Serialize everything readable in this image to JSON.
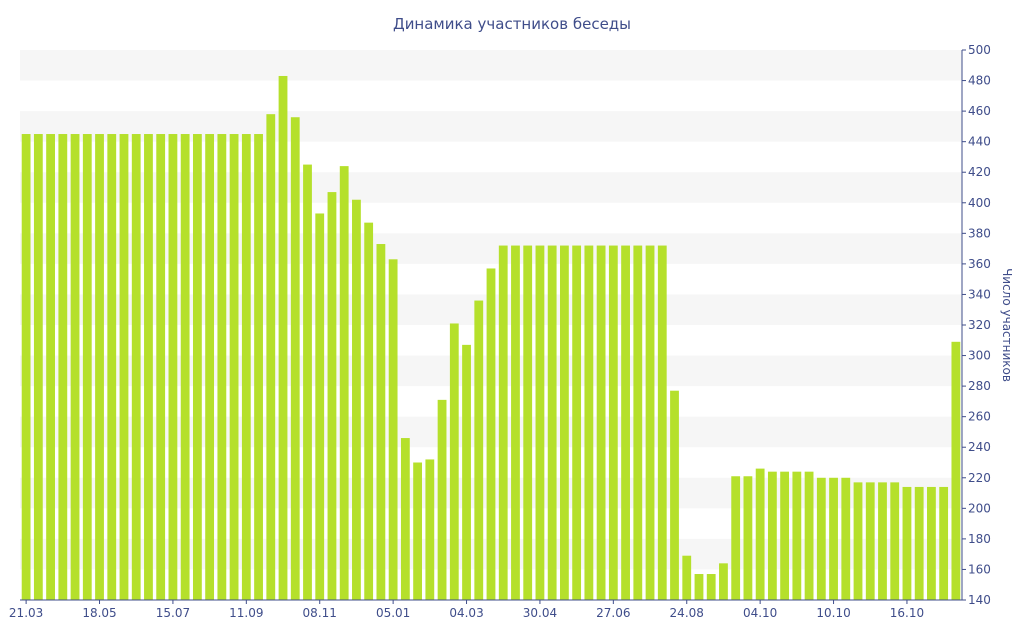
{
  "chart_data": {
    "type": "bar",
    "title": "Динамика участников беседы",
    "ylabel": "Число участников",
    "xlabel": "",
    "ylim": [
      140,
      500
    ],
    "ytick_step": 20,
    "y_axis_position": "right",
    "grid": "horizontal alternating bands",
    "color": "#b5e02b",
    "x_tick_labels": [
      "21.03",
      "18.05",
      "15.07",
      "11.09",
      "08.11",
      "05.01",
      "04.03",
      "30.04",
      "27.06",
      "24.08",
      "04.10",
      "10.10",
      "16.10"
    ],
    "values": [
      445,
      445,
      445,
      445,
      445,
      445,
      445,
      445,
      445,
      445,
      445,
      445,
      445,
      445,
      445,
      445,
      445,
      445,
      445,
      445,
      458,
      483,
      456,
      425,
      393,
      407,
      424,
      402,
      387,
      373,
      363,
      246,
      230,
      232,
      271,
      321,
      307,
      336,
      357,
      372,
      372,
      372,
      372,
      372,
      372,
      372,
      372,
      372,
      372,
      372,
      372,
      372,
      372,
      277,
      169,
      157,
      157,
      164,
      221,
      221,
      226,
      224,
      224,
      224,
      224,
      220,
      220,
      220,
      217,
      217,
      217,
      217,
      214,
      214,
      214,
      214,
      309
    ]
  }
}
